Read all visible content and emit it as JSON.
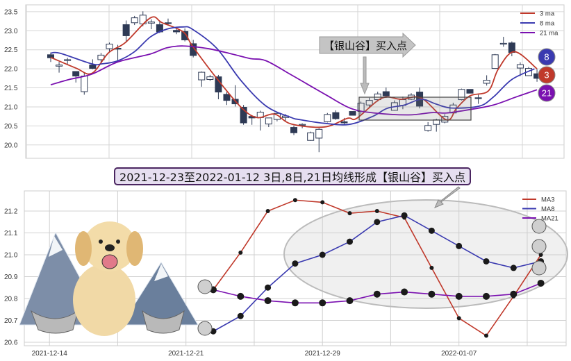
{
  "chart_data": [
    {
      "type": "candlestick",
      "yticks": [
        "20.0",
        "20.5",
        "21.0",
        "21.5",
        "22.0",
        "22.5",
        "23.0",
        "23.5"
      ],
      "ylim": [
        19.65,
        23.68
      ],
      "grid": true,
      "legend": {
        "position": "top-right",
        "entries": [
          "3 ma",
          "8 ma",
          "21 ma"
        ]
      },
      "colors": {
        "ma3": "#c0392b",
        "ma8": "#3a3ab0",
        "ma21": "#7a10b0",
        "down": "#2e3a55",
        "up": "#ffffff"
      },
      "candles_ohlc": [
        [
          22.37,
          22.43,
          22.18,
          22.29
        ],
        [
          22.07,
          22.18,
          21.9,
          22.1
        ],
        [
          22.22,
          22.29,
          22.11,
          22.24
        ],
        [
          21.93,
          21.93,
          21.64,
          21.81
        ],
        [
          21.4,
          21.9,
          21.32,
          21.81
        ],
        [
          22.1,
          22.25,
          21.99,
          22.01
        ],
        [
          22.24,
          22.42,
          22.12,
          22.36
        ],
        [
          22.53,
          22.69,
          22.43,
          22.65
        ],
        [
          22.54,
          22.63,
          22.2,
          22.52
        ],
        [
          23.16,
          23.27,
          22.69,
          22.87
        ],
        [
          23.21,
          23.39,
          23.15,
          23.34
        ],
        [
          23.18,
          23.51,
          23.12,
          23.41
        ],
        [
          23.2,
          23.3,
          23.04,
          23.23
        ],
        [
          23.16,
          23.27,
          22.94,
          22.97
        ],
        [
          23.21,
          23.32,
          23.14,
          23.19
        ],
        [
          23.01,
          23.09,
          22.91,
          22.97
        ],
        [
          22.98,
          23.06,
          22.72,
          22.76
        ],
        [
          22.66,
          22.76,
          22.3,
          22.35
        ],
        [
          21.71,
          21.93,
          21.53,
          21.91
        ],
        [
          21.72,
          21.84,
          21.68,
          21.79
        ],
        [
          21.79,
          21.84,
          21.2,
          21.39
        ],
        [
          21.33,
          21.39,
          21.05,
          21.17
        ],
        [
          21.2,
          21.57,
          21.01,
          21.08
        ],
        [
          20.99,
          21.05,
          20.53,
          20.58
        ],
        [
          20.75,
          20.75,
          20.53,
          20.71
        ],
        [
          20.72,
          20.9,
          20.38,
          20.86
        ],
        [
          20.55,
          20.71,
          20.47,
          20.71
        ],
        [
          20.67,
          20.86,
          20.62,
          20.83
        ],
        [
          20.72,
          20.81,
          20.62,
          20.76
        ],
        [
          20.46,
          20.51,
          20.26,
          20.32
        ],
        [
          20.53,
          20.57,
          20.44,
          20.54
        ],
        [
          20.12,
          20.35,
          20.11,
          20.32
        ],
        [
          20.18,
          20.44,
          19.81,
          20.41
        ],
        [
          20.61,
          20.84,
          20.59,
          20.8
        ],
        [
          20.85,
          20.91,
          20.66,
          20.69
        ],
        [
          20.61,
          20.71,
          20.53,
          20.58
        ],
        [
          20.88,
          20.88,
          20.78,
          20.78
        ],
        [
          20.88,
          21.14,
          20.78,
          21.1
        ],
        [
          21.05,
          21.24,
          20.96,
          21.17
        ],
        [
          21.19,
          21.4,
          21.14,
          21.34
        ],
        [
          21.4,
          21.51,
          21.24,
          21.29
        ],
        [
          20.91,
          21.17,
          20.9,
          21.11
        ],
        [
          21.04,
          21.27,
          20.94,
          21.19
        ],
        [
          21.2,
          21.36,
          21.18,
          21.31
        ],
        [
          21.39,
          21.51,
          20.96,
          21.02
        ],
        [
          20.38,
          20.6,
          20.35,
          20.51
        ],
        [
          20.54,
          20.69,
          20.35,
          20.66
        ],
        [
          20.6,
          20.81,
          20.57,
          20.75
        ],
        [
          20.84,
          21.11,
          20.81,
          21.05
        ],
        [
          21.19,
          21.48,
          21.17,
          21.46
        ],
        [
          21.46,
          21.46,
          21.36,
          21.36
        ],
        [
          21.24,
          21.32,
          21.08,
          21.22
        ],
        [
          21.62,
          21.83,
          21.56,
          21.7
        ],
        [
          22.01,
          22.39,
          22.0,
          22.37
        ],
        [
          22.66,
          22.84,
          22.58,
          22.67
        ],
        [
          22.68,
          22.72,
          22.33,
          22.43
        ],
        [
          22.02,
          22.17,
          21.81,
          22.11
        ],
        [
          21.82,
          22.05,
          21.81,
          22.01
        ],
        [
          21.87,
          21.99,
          21.66,
          21.75
        ]
      ],
      "series": [
        {
          "name": "3 ma",
          "points": [
            [
              0,
              22.3
            ],
            [
              3,
              22.02
            ],
            [
              4.9,
              21.88
            ],
            [
              6.9,
              22.42
            ],
            [
              8.9,
              22.69
            ],
            [
              11.9,
              23.34
            ],
            [
              13.3,
              23.21
            ],
            [
              15.8,
              22.97
            ],
            [
              16.9,
              22.6
            ],
            [
              19.8,
              21.75
            ],
            [
              22.7,
              20.99
            ],
            [
              24.6,
              20.72
            ],
            [
              26.7,
              20.81
            ],
            [
              28.7,
              20.55
            ],
            [
              32.6,
              20.47
            ],
            [
              35.4,
              20.7
            ],
            [
              36.5,
              20.7
            ],
            [
              39.5,
              21.23
            ],
            [
              41.8,
              21.2
            ],
            [
              44.2,
              21.23
            ],
            [
              47.2,
              20.66
            ],
            [
              48.4,
              20.96
            ],
            [
              50,
              21.29
            ],
            [
              52.2,
              21.42
            ],
            [
              53.4,
              22.0
            ],
            [
              55.3,
              22.45
            ],
            [
              58,
              22.0
            ]
          ]
        },
        {
          "name": "8 ma",
          "points": [
            [
              0,
              22.41
            ],
            [
              1.1,
              22.41
            ],
            [
              4.9,
              22.13
            ],
            [
              6.1,
              22.13
            ],
            [
              8,
              22.21
            ],
            [
              10,
              22.45
            ],
            [
              11.9,
              22.84
            ],
            [
              13.8,
              23.04
            ],
            [
              15.8,
              23.1
            ],
            [
              16.9,
              23.04
            ],
            [
              19.8,
              22.54
            ],
            [
              22.7,
              21.69
            ],
            [
              25.7,
              21.02
            ],
            [
              28.7,
              20.72
            ],
            [
              29.6,
              20.67
            ],
            [
              32.6,
              20.57
            ],
            [
              35.6,
              20.54
            ],
            [
              38.4,
              20.75
            ],
            [
              40.1,
              20.96
            ],
            [
              42.2,
              21.05
            ],
            [
              44.2,
              21.2
            ],
            [
              45.9,
              21.08
            ],
            [
              47.8,
              20.97
            ],
            [
              51.1,
              21.02
            ],
            [
              52.8,
              21.26
            ],
            [
              55,
              21.72
            ],
            [
              57.7,
              22.0
            ]
          ]
        },
        {
          "name": "21 ma",
          "points": [
            [
              0,
              21.58
            ],
            [
              2.2,
              21.72
            ],
            [
              4.9,
              21.86
            ],
            [
              8,
              22.18
            ],
            [
              11.9,
              22.39
            ],
            [
              13.8,
              22.55
            ],
            [
              15.8,
              22.6
            ],
            [
              18.8,
              22.53
            ],
            [
              21.6,
              22.39
            ],
            [
              23.8,
              22.27
            ],
            [
              25.7,
              22.21
            ],
            [
              28.7,
              21.84
            ],
            [
              32.8,
              21.32
            ],
            [
              35.8,
              20.96
            ],
            [
              38.6,
              20.84
            ],
            [
              42.7,
              20.79
            ],
            [
              45.5,
              20.85
            ],
            [
              47.2,
              20.84
            ],
            [
              50,
              20.93
            ],
            [
              52.8,
              21.05
            ],
            [
              55.5,
              21.26
            ],
            [
              58,
              21.45
            ]
          ]
        }
      ],
      "annotation": "【银山谷】买入点",
      "badges": [
        "8",
        "3",
        "21"
      ]
    },
    {
      "type": "line",
      "yticks": [
        "20.6",
        "20.7",
        "20.8",
        "20.9",
        "21.0",
        "21.1",
        "21.2"
      ],
      "ylim": [
        20.585,
        21.29
      ],
      "xticks": [
        {
          "pos": -6,
          "label": "2021-12-14"
        },
        {
          "pos": -1,
          "label": "2021-12-21"
        },
        {
          "pos": 4,
          "label": "2021-12-29"
        },
        {
          "pos": 9,
          "label": "2022-01-07"
        }
      ],
      "grid": true,
      "legend": {
        "position": "top-right",
        "entries": [
          "MA3",
          "MA8",
          "MA21"
        ]
      },
      "series": [
        {
          "name": "MA3",
          "color": "#c0392b",
          "values": [
            20.84,
            21.01,
            21.2,
            21.25,
            21.24,
            21.19,
            21.2,
            21.17,
            20.94,
            20.71,
            20.63,
            20.81,
            21.0
          ]
        },
        {
          "name": "MA8",
          "color": "#3a3ab0",
          "values": [
            20.65,
            20.72,
            20.85,
            20.96,
            21.0,
            21.06,
            21.15,
            21.18,
            21.11,
            21.04,
            20.97,
            20.94,
            20.97
          ]
        },
        {
          "name": "MA21",
          "color": "#7a10b0",
          "values": [
            20.84,
            20.81,
            20.79,
            20.78,
            20.78,
            20.79,
            20.82,
            20.83,
            20.82,
            20.81,
            20.81,
            20.82,
            20.87
          ]
        }
      ]
    }
  ],
  "banner": "2021-12-23至2022-01-12 3日,8日,21日均线形成【银山谷】买入点"
}
